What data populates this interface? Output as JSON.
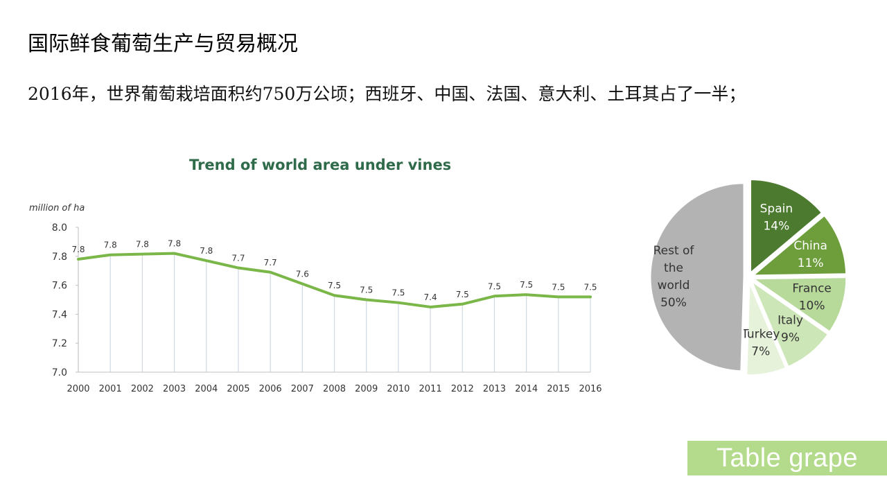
{
  "slide": {
    "title": "国际鲜食葡萄生产与贸易概况",
    "subtitle": "2016年，世界葡萄栽培面积约750万公顷；西班牙、中国、法国、意大利、土耳其占了一半；"
  },
  "tag": {
    "label": "Table grape"
  },
  "chart_data": [
    {
      "type": "line",
      "title": "Trend of world area under vines",
      "ylabel": "million of ha",
      "xlabel": "",
      "x": [
        "2000",
        "2001",
        "2002",
        "2003",
        "2004",
        "2005",
        "2006",
        "2007",
        "2008",
        "2009",
        "2010",
        "2011",
        "2012",
        "2013",
        "2014",
        "2015",
        "2016"
      ],
      "values": [
        7.78,
        7.81,
        7.815,
        7.82,
        7.77,
        7.72,
        7.69,
        7.61,
        7.53,
        7.5,
        7.48,
        7.45,
        7.47,
        7.525,
        7.535,
        7.52,
        7.52
      ],
      "data_labels": [
        "7.8",
        "7.8",
        "7.8",
        "7.8",
        "7.8",
        "7.7",
        "7.7",
        "7.6",
        "7.5",
        "7.5",
        "7.5",
        "7.4",
        "7.5",
        "7.5",
        "7.5",
        "7.5",
        "7.5"
      ],
      "yticks": [
        "7.0",
        "7.2",
        "7.4",
        "7.6",
        "7.8",
        "8.0"
      ],
      "ylim": [
        7.0,
        8.0
      ],
      "grid": "vertical",
      "line_color": "#7ab648"
    },
    {
      "type": "pie",
      "slices": [
        {
          "label": "Spain",
          "pct_label": "14%",
          "value": 14,
          "color": "#4c7a2e",
          "text_color": "#ffffff"
        },
        {
          "label": "China",
          "pct_label": "11%",
          "value": 11,
          "color": "#6e9e3c",
          "text_color": "#ffffff"
        },
        {
          "label": "France",
          "pct_label": "10%",
          "value": 10,
          "color": "#b7d99a",
          "text_color": "#333333"
        },
        {
          "label": "Italy",
          "pct_label": "9%",
          "value": 9,
          "color": "#cde6b7",
          "text_color": "#333333"
        },
        {
          "label": "Turkey",
          "pct_label": "7%",
          "value": 7,
          "color": "#e6f2da",
          "text_color": "#333333"
        },
        {
          "label": "Rest of the world",
          "label_lines": [
            "Rest of",
            "the",
            "world"
          ],
          "pct_label": "50%",
          "value": 50,
          "color": "#b3b3b3",
          "text_color": "#333333"
        }
      ]
    }
  ]
}
